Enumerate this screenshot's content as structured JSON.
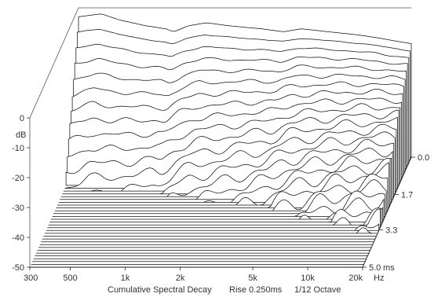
{
  "chart_data": {
    "type": "waterfall",
    "title": "Cumulative Spectral Decay",
    "rise_label": "Rise 0.250ms",
    "smoothing_label": "1/12 Octave",
    "y_unit": "dB",
    "time_unit": "ms",
    "freq_unit": "Hz",
    "y_ticks": [
      "0",
      "-10",
      "-20",
      "-30",
      "-40",
      "-50"
    ],
    "x_ticks": [
      "300",
      "500",
      "1k",
      "2k",
      "5k",
      "10k",
      "20k"
    ],
    "time_ticks": [
      "0.0",
      "1.7",
      "3.3",
      "5.0"
    ],
    "ylim": [
      -50,
      0
    ],
    "xlim_hz": [
      300,
      20000
    ],
    "time_range_ms": [
      0,
      5.0
    ],
    "slice_count": 40,
    "initial_response_db": [
      [
        300,
        -3
      ],
      [
        400,
        -2
      ],
      [
        500,
        -4
      ],
      [
        700,
        -6
      ],
      [
        900,
        -7
      ],
      [
        1000,
        -8
      ],
      [
        1200,
        -6
      ],
      [
        1500,
        -5
      ],
      [
        2000,
        -6
      ],
      [
        3000,
        -7
      ],
      [
        4000,
        -8
      ],
      [
        5000,
        -7
      ],
      [
        7000,
        -8
      ],
      [
        10000,
        -9
      ],
      [
        13000,
        -10
      ],
      [
        16000,
        -11
      ],
      [
        20000,
        -12
      ]
    ],
    "line_color": "#111111",
    "fill_color": "#ffffff",
    "background": "#ffffff"
  }
}
